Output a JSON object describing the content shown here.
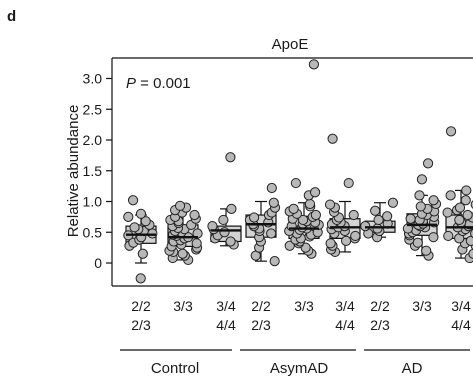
{
  "panel_label": "d",
  "chart_data": {
    "type": "box",
    "title": "ApoE",
    "annotation": "P = 0.001",
    "annotation_p": "P",
    "annotation_rest": " = 0.001",
    "xlabel": "",
    "ylabel": "Relative abundance",
    "ylim": [
      -0.35,
      3.35
    ],
    "yticks": [
      0,
      0.5,
      1.0,
      1.5,
      2.0,
      2.5,
      3.0
    ],
    "ytick_labels": [
      "0",
      "0.5",
      "1.0",
      "1.5",
      "2.0",
      "2.5",
      "3.0"
    ],
    "grid": false,
    "legend": "none",
    "colors": {
      "point_fill": "#b8b8b8",
      "point_stroke": "#222222",
      "box_fill": "#d4d4d4",
      "line": "#111111"
    },
    "groups": [
      {
        "name": "Control",
        "boxes": [
          {
            "genotype_line1": "2/2",
            "genotype_line2": "2/3",
            "q1": 0.32,
            "median": 0.46,
            "q3": 0.6,
            "whisker_low": 0.0,
            "whisker_high": 0.78,
            "points": [
              -0.25,
              0.15,
              0.28,
              0.33,
              0.38,
              0.42,
              0.45,
              0.48,
              0.52,
              0.55,
              0.58,
              0.62,
              0.68,
              0.75,
              0.8,
              1.02
            ]
          },
          {
            "genotype_line1": "3/3",
            "genotype_line2": "",
            "q1": 0.27,
            "median": 0.42,
            "q3": 0.62,
            "whisker_low": 0.05,
            "whisker_high": 0.93,
            "points": [
              0.05,
              0.08,
              0.12,
              0.15,
              0.18,
              0.2,
              0.22,
              0.25,
              0.27,
              0.3,
              0.32,
              0.35,
              0.37,
              0.4,
              0.42,
              0.44,
              0.46,
              0.48,
              0.5,
              0.52,
              0.55,
              0.57,
              0.6,
              0.62,
              0.65,
              0.68,
              0.7,
              0.72,
              0.75,
              0.78,
              0.82,
              0.86,
              0.9,
              0.93
            ]
          },
          {
            "genotype_line1": "3/4",
            "genotype_line2": "4/4",
            "q1": 0.35,
            "median": 0.53,
            "q3": 0.6,
            "whisker_low": 0.28,
            "whisker_high": 0.88,
            "points": [
              0.3,
              0.35,
              0.4,
              0.45,
              0.5,
              0.55,
              0.6,
              0.7,
              0.88,
              1.72
            ]
          }
        ]
      },
      {
        "name": "AsymAD",
        "boxes": [
          {
            "genotype_line1": "2/2",
            "genotype_line2": "2/3",
            "q1": 0.42,
            "median": 0.63,
            "q3": 0.78,
            "whisker_low": 0.03,
            "whisker_high": 1.0,
            "points": [
              0.03,
              0.12,
              0.25,
              0.35,
              0.42,
              0.48,
              0.52,
              0.56,
              0.6,
              0.63,
              0.66,
              0.7,
              0.74,
              0.78,
              0.82,
              0.9,
              0.98,
              1.22
            ]
          },
          {
            "genotype_line1": "3/3",
            "genotype_line2": "",
            "q1": 0.4,
            "median": 0.56,
            "q3": 0.76,
            "whisker_low": 0.15,
            "whisker_high": 0.98,
            "points": [
              0.15,
              0.2,
              0.25,
              0.28,
              0.32,
              0.35,
              0.38,
              0.4,
              0.43,
              0.46,
              0.48,
              0.5,
              0.52,
              0.54,
              0.56,
              0.58,
              0.6,
              0.62,
              0.64,
              0.66,
              0.68,
              0.7,
              0.72,
              0.75,
              0.78,
              0.8,
              0.84,
              0.88,
              0.92,
              0.96,
              1.1,
              1.15,
              1.3,
              3.23
            ]
          },
          {
            "genotype_line1": "3/4",
            "genotype_line2": "4/4",
            "q1": 0.4,
            "median": 0.58,
            "q3": 0.72,
            "whisker_low": 0.18,
            "whisker_high": 1.0,
            "points": [
              0.18,
              0.22,
              0.28,
              0.32,
              0.36,
              0.4,
              0.44,
              0.48,
              0.52,
              0.55,
              0.58,
              0.6,
              0.63,
              0.66,
              0.7,
              0.74,
              0.78,
              0.83,
              0.9,
              0.95,
              1.3,
              2.02
            ]
          }
        ]
      },
      {
        "name": "AD",
        "boxes": [
          {
            "genotype_line1": "2/2",
            "genotype_line2": "2/3",
            "q1": 0.5,
            "median": 0.58,
            "q3": 0.68,
            "whisker_low": 0.42,
            "whisker_high": 0.98,
            "points": [
              0.42,
              0.48,
              0.52,
              0.56,
              0.6,
              0.64,
              0.7,
              0.76,
              0.85,
              0.98
            ]
          },
          {
            "genotype_line1": "3/3",
            "genotype_line2": "",
            "q1": 0.45,
            "median": 0.62,
            "q3": 0.8,
            "whisker_low": 0.12,
            "whisker_high": 1.1,
            "points": [
              0.12,
              0.2,
              0.28,
              0.33,
              0.38,
              0.42,
              0.45,
              0.48,
              0.5,
              0.53,
              0.56,
              0.58,
              0.6,
              0.62,
              0.64,
              0.66,
              0.68,
              0.7,
              0.72,
              0.75,
              0.78,
              0.8,
              0.84,
              0.88,
              0.92,
              0.96,
              1.02,
              1.1,
              1.36,
              1.62
            ]
          },
          {
            "genotype_line1": "3/4",
            "genotype_line2": "4/4",
            "q1": 0.4,
            "median": 0.58,
            "q3": 0.78,
            "whisker_low": 0.08,
            "whisker_high": 1.18,
            "points": [
              0.08,
              0.15,
              0.22,
              0.28,
              0.32,
              0.36,
              0.4,
              0.44,
              0.48,
              0.52,
              0.55,
              0.58,
              0.6,
              0.63,
              0.66,
              0.7,
              0.74,
              0.78,
              0.82,
              0.86,
              0.9,
              0.95,
              1.02,
              1.1,
              1.18,
              2.14
            ]
          }
        ]
      }
    ]
  }
}
